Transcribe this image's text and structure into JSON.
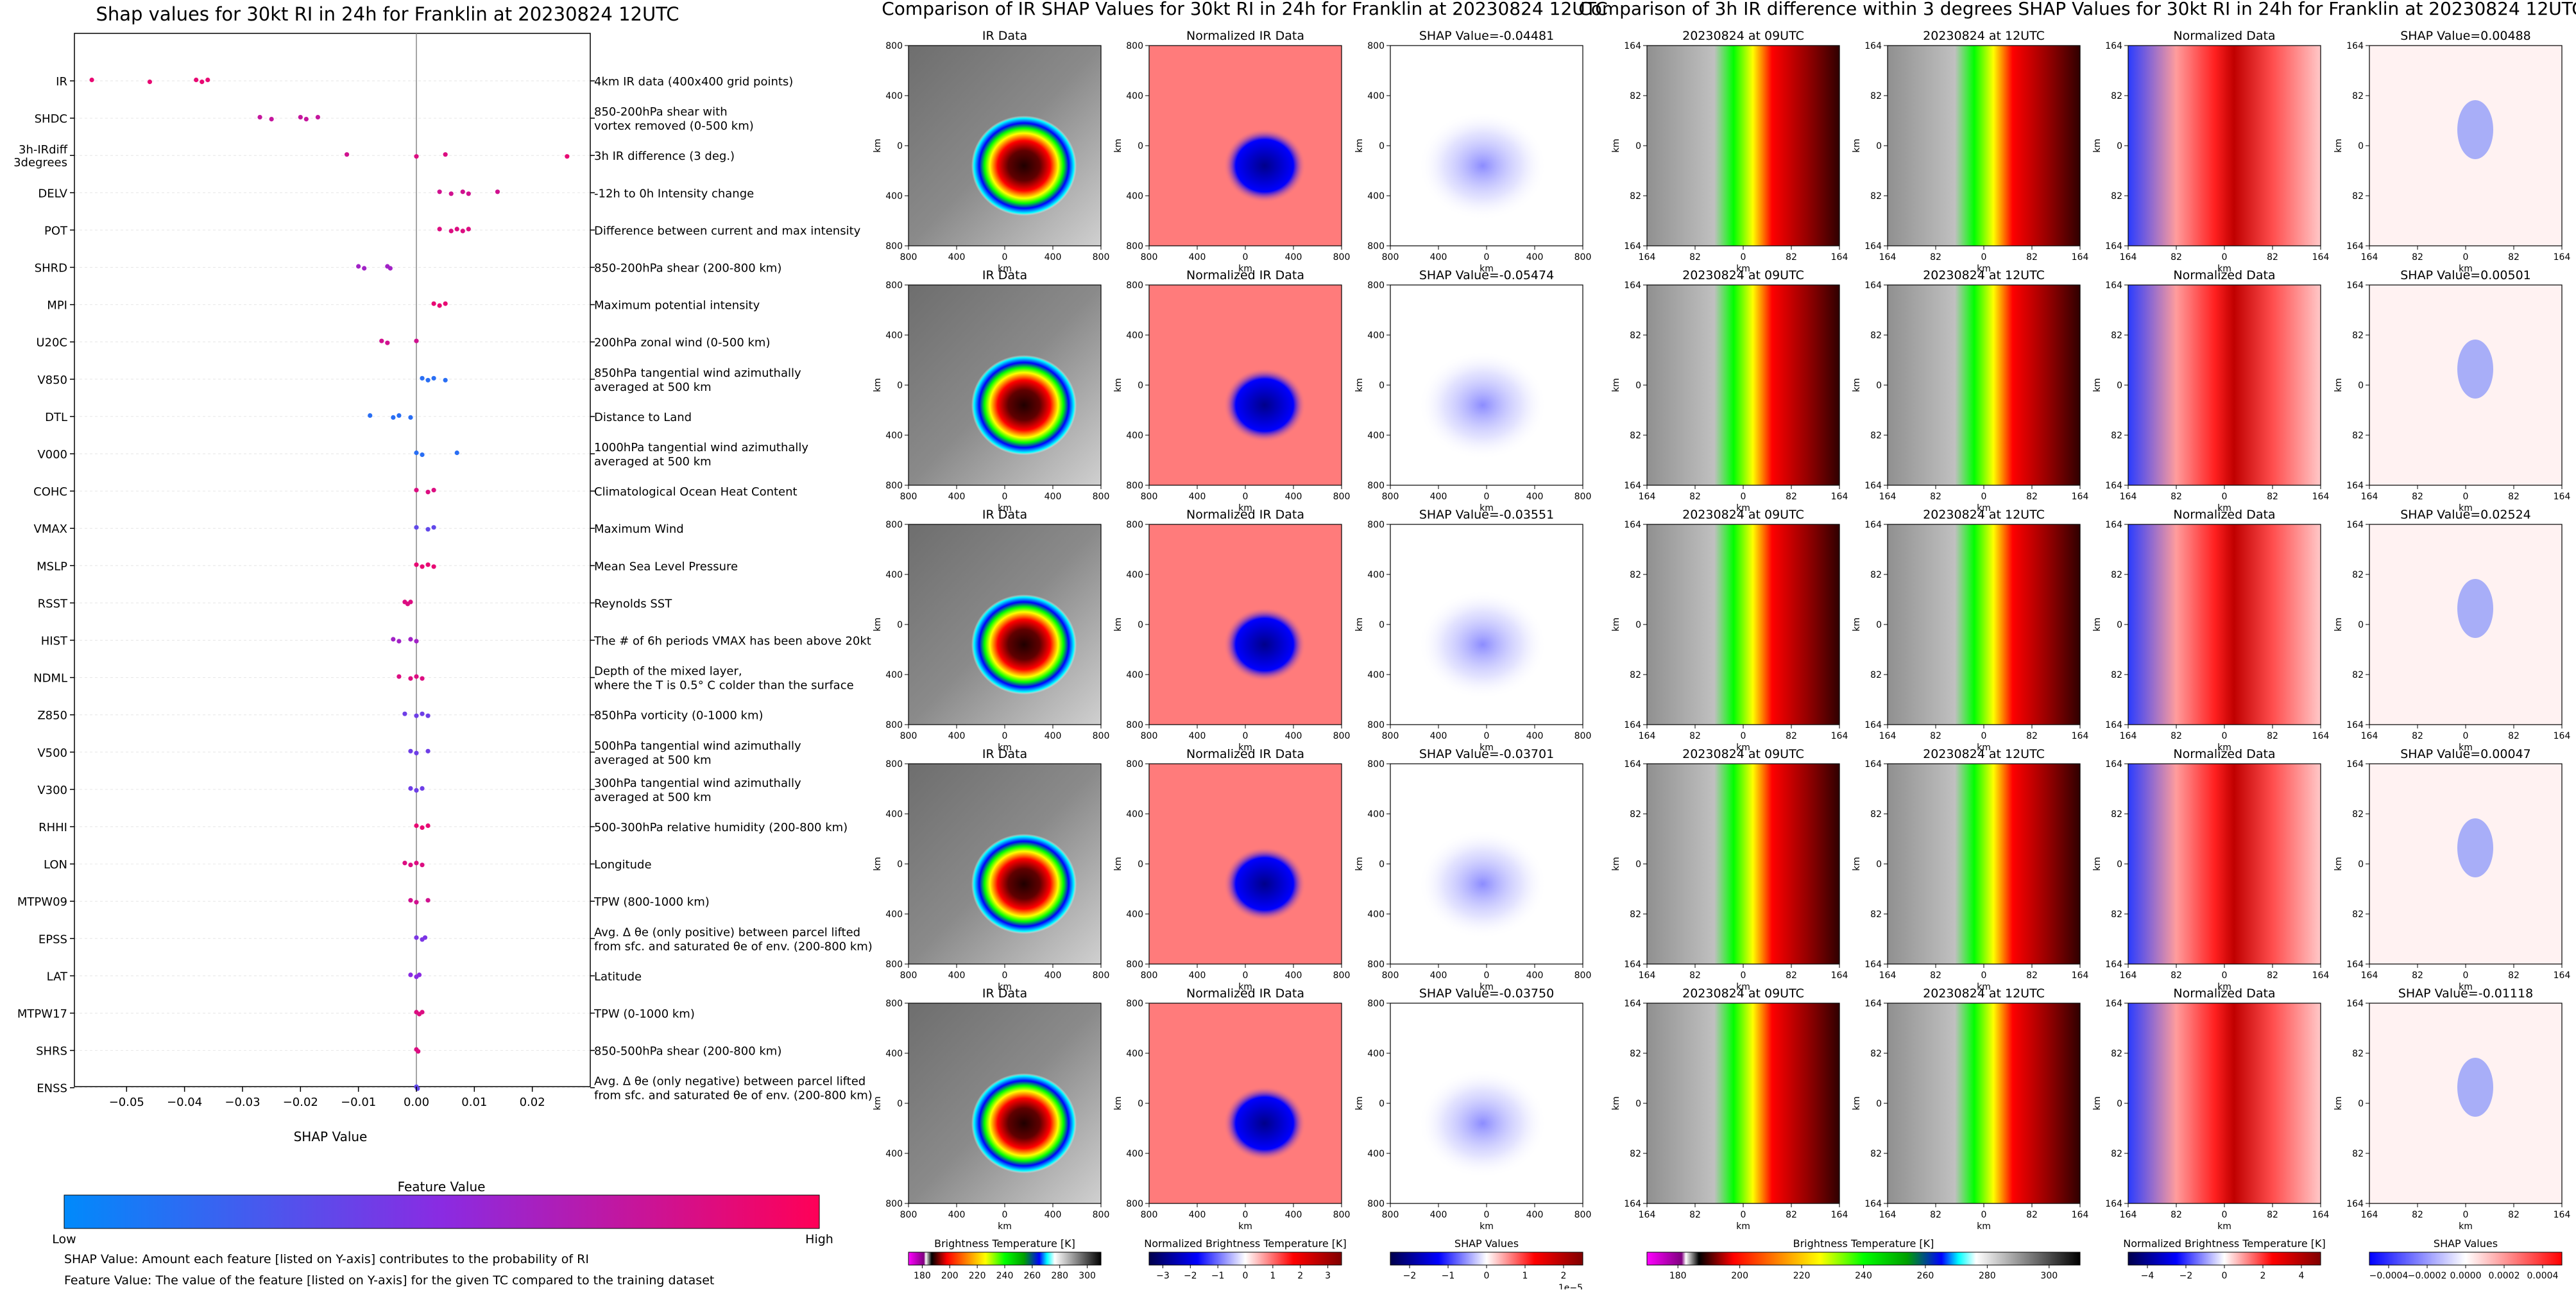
{
  "left_panel": {
    "title": "Shap values for 30kt RI in 24h for Franklin at 20230824 12UTC",
    "xlabel": "SHAP Value",
    "colorbar_title": "Feature Value",
    "colorbar_low": "Low",
    "colorbar_high": "High",
    "note_shap": "SHAP Value: Amount each feature [listed on Y-axis] contributes to the probability of RI",
    "note_feature": "Feature Value: The value of the feature [listed on Y-axis] for the given TC compared to the training dataset"
  },
  "chart_data": [
    {
      "type": "scatter",
      "title": "Shap values for 30kt RI in 24h for Franklin at 20230824 12UTC",
      "xlabel": "SHAP Value",
      "xlim": [
        -0.059,
        0.03
      ],
      "xticks": [
        -0.05,
        -0.04,
        -0.03,
        -0.02,
        -0.01,
        0.0,
        0.01,
        0.02
      ],
      "xtick_labels": [
        "−0.05",
        "−0.04",
        "−0.03",
        "−0.02",
        "−0.01",
        "0.00",
        "0.01",
        "0.02"
      ],
      "legend": "colorbar bottom (Feature Value: Low to High)",
      "features": [
        {
          "name": "IR",
          "desc": "4km IR data (400x400 grid points)",
          "points": [
            [
              -0.056,
              0.9
            ],
            [
              -0.046,
              0.9
            ],
            [
              -0.038,
              0.9
            ],
            [
              -0.037,
              0.9
            ],
            [
              -0.036,
              0.9
            ]
          ]
        },
        {
          "name": "SHDC",
          "desc": "850-200hPa shear with\nvortex removed (0-500 km)",
          "points": [
            [
              -0.027,
              0.75
            ],
            [
              -0.025,
              0.75
            ],
            [
              -0.02,
              0.75
            ],
            [
              -0.019,
              0.75
            ],
            [
              -0.017,
              0.75
            ]
          ]
        },
        {
          "name": "3h-IRdiff\n3degrees",
          "desc": "3h IR difference (3 deg.)",
          "points": [
            [
              -0.012,
              0.8
            ],
            [
              0.0,
              0.85
            ],
            [
              0.005,
              0.85
            ],
            [
              0.026,
              0.9
            ]
          ]
        },
        {
          "name": "DELV",
          "desc": "-12h to 0h Intensity change",
          "points": [
            [
              0.004,
              0.8
            ],
            [
              0.006,
              0.8
            ],
            [
              0.008,
              0.8
            ],
            [
              0.009,
              0.8
            ],
            [
              0.014,
              0.8
            ]
          ]
        },
        {
          "name": "POT",
          "desc": "Difference between current and max intensity",
          "points": [
            [
              0.004,
              0.85
            ],
            [
              0.006,
              0.85
            ],
            [
              0.007,
              0.85
            ],
            [
              0.008,
              0.85
            ],
            [
              0.009,
              0.85
            ]
          ]
        },
        {
          "name": "SHRD",
          "desc": "850-200hPa shear (200-800 km)",
          "points": [
            [
              -0.01,
              0.6
            ],
            [
              -0.009,
              0.6
            ],
            [
              -0.005,
              0.6
            ],
            [
              -0.0045,
              0.6
            ]
          ]
        },
        {
          "name": "MPI",
          "desc": "Maximum potential intensity",
          "points": [
            [
              0.003,
              0.9
            ],
            [
              0.004,
              0.9
            ],
            [
              0.005,
              0.9
            ]
          ]
        },
        {
          "name": "U20C",
          "desc": "200hPa zonal wind (0-500 km)",
          "points": [
            [
              -0.006,
              0.8
            ],
            [
              -0.005,
              0.8
            ],
            [
              0.0,
              0.8
            ]
          ]
        },
        {
          "name": "V850",
          "desc": "850hPa tangential wind azimuthally\naveraged at 500 km",
          "points": [
            [
              0.001,
              0.15
            ],
            [
              0.002,
              0.15
            ],
            [
              0.003,
              0.15
            ],
            [
              0.005,
              0.15
            ]
          ]
        },
        {
          "name": "DTL",
          "desc": "Distance to Land",
          "points": [
            [
              -0.008,
              0.15
            ],
            [
              -0.004,
              0.15
            ],
            [
              -0.003,
              0.15
            ],
            [
              -0.001,
              0.15
            ]
          ]
        },
        {
          "name": "V000",
          "desc": "1000hPa tangential wind azimuthally\naveraged at 500 km",
          "points": [
            [
              0.0,
              0.15
            ],
            [
              0.001,
              0.15
            ],
            [
              0.007,
              0.15
            ]
          ]
        },
        {
          "name": "COHC",
          "desc": "Climatological Ocean Heat Content",
          "points": [
            [
              0.0,
              0.85
            ],
            [
              0.002,
              0.85
            ],
            [
              0.003,
              0.85
            ]
          ]
        },
        {
          "name": "VMAX",
          "desc": "Maximum Wind",
          "points": [
            [
              0.0,
              0.35
            ],
            [
              0.002,
              0.35
            ],
            [
              0.003,
              0.35
            ]
          ]
        },
        {
          "name": "MSLP",
          "desc": "Mean Sea Level Pressure",
          "points": [
            [
              0.0,
              0.9
            ],
            [
              0.001,
              0.9
            ],
            [
              0.002,
              0.9
            ],
            [
              0.003,
              0.9
            ]
          ]
        },
        {
          "name": "RSST",
          "desc": "Reynolds SST",
          "points": [
            [
              -0.002,
              0.85
            ],
            [
              -0.0015,
              0.85
            ],
            [
              -0.001,
              0.85
            ]
          ]
        },
        {
          "name": "HIST",
          "desc": "The # of 6h periods VMAX has been above 20kt",
          "points": [
            [
              -0.004,
              0.6
            ],
            [
              -0.003,
              0.6
            ],
            [
              -0.001,
              0.6
            ],
            [
              0.0,
              0.6
            ]
          ]
        },
        {
          "name": "NDML",
          "desc": "Depth of the mixed layer,\nwhere the T is 0.5° C colder than the surface",
          "points": [
            [
              -0.003,
              0.85
            ],
            [
              -0.001,
              0.85
            ],
            [
              0.0,
              0.85
            ],
            [
              0.001,
              0.85
            ]
          ]
        },
        {
          "name": "Z850",
          "desc": "850hPa vorticity (0-1000 km)",
          "points": [
            [
              -0.002,
              0.4
            ],
            [
              0.0,
              0.4
            ],
            [
              0.001,
              0.4
            ],
            [
              0.002,
              0.4
            ]
          ]
        },
        {
          "name": "V500",
          "desc": "500hPa tangential wind azimuthally\naveraged at 500 km",
          "points": [
            [
              -0.001,
              0.4
            ],
            [
              0.0,
              0.4
            ],
            [
              0.002,
              0.4
            ]
          ]
        },
        {
          "name": "V300",
          "desc": "300hPa tangential wind azimuthally\naveraged at 500 km",
          "points": [
            [
              -0.001,
              0.4
            ],
            [
              0.0,
              0.4
            ],
            [
              0.001,
              0.4
            ]
          ]
        },
        {
          "name": "RHHI",
          "desc": "500-300hPa relative humidity (200-800 km)",
          "points": [
            [
              0.0,
              0.9
            ],
            [
              0.001,
              0.9
            ],
            [
              0.002,
              0.9
            ]
          ]
        },
        {
          "name": "LON",
          "desc": "Longitude",
          "points": [
            [
              -0.002,
              0.85
            ],
            [
              -0.001,
              0.85
            ],
            [
              0.0,
              0.85
            ],
            [
              0.001,
              0.85
            ]
          ]
        },
        {
          "name": "MTPW09",
          "desc": "TPW (800-1000 km)",
          "points": [
            [
              -0.001,
              0.8
            ],
            [
              0.0,
              0.8
            ],
            [
              0.002,
              0.8
            ]
          ]
        },
        {
          "name": "EPSS",
          "desc": "Avg. Δ θe (only positive) between parcel lifted\nfrom sfc. and saturated θe of env. (200-800 km)",
          "points": [
            [
              0.0,
              0.45
            ],
            [
              0.001,
              0.45
            ],
            [
              0.0015,
              0.45
            ]
          ]
        },
        {
          "name": "LAT",
          "desc": "Latitude",
          "points": [
            [
              -0.001,
              0.5
            ],
            [
              0.0,
              0.5
            ],
            [
              0.0005,
              0.5
            ]
          ]
        },
        {
          "name": "MTPW17",
          "desc": "TPW (0-1000 km)",
          "points": [
            [
              0.0,
              0.85
            ],
            [
              0.0005,
              0.85
            ],
            [
              0.001,
              0.85
            ]
          ]
        },
        {
          "name": "SHRS",
          "desc": "850-500hPa shear (200-800 km)",
          "points": [
            [
              0.0,
              0.85
            ],
            [
              0.0003,
              0.85
            ]
          ]
        },
        {
          "name": "ENSS",
          "desc": "Avg. Δ θe (only negative) between parcel lifted\nfrom sfc. and saturated θe of env. (200-800 km)",
          "points": [
            [
              0.0,
              0.35
            ],
            [
              0.0002,
              0.35
            ]
          ]
        }
      ]
    },
    {
      "type": "heatmap",
      "title": "Comparison of IR SHAP Values for 30kt RI in 24h for Franklin at 20230824 12UTC",
      "columns": [
        "IR Data",
        "Normalized IR Data",
        "SHAP Value"
      ],
      "shap_values": [
        "-0.04481",
        "-0.05474",
        "-0.03551",
        "-0.03701",
        "-0.03750"
      ],
      "axis_label": "km",
      "x_ticks": [
        "800",
        "400",
        "0",
        "400",
        "800"
      ],
      "y_ticks": [
        "800",
        "400",
        "0",
        "400",
        "800"
      ],
      "colorbars": [
        {
          "label": "Brightness Temperature [K]",
          "ticks": [
            "180",
            "200",
            "220",
            "240",
            "260",
            "280",
            "300"
          ]
        },
        {
          "label": "Normalized Brightness Temperature [K]",
          "ticks": [
            "−3",
            "−2",
            "−1",
            "0",
            "1",
            "2",
            "3"
          ]
        },
        {
          "label": "SHAP Values",
          "ticks": [
            "−2",
            "−1",
            "0",
            "1",
            "2"
          ],
          "offset": "1e−5"
        }
      ]
    },
    {
      "type": "heatmap",
      "title": "Comparison of 3h IR difference within 3 degrees SHAP Values for 30kt RI in 24h for Franklin at 20230824 12UTC",
      "columns": [
        "20230824 at 09UTC",
        "20230824 at 12UTC",
        "Normalized Data",
        "SHAP Value"
      ],
      "shap_values": [
        "0.00488",
        "0.00501",
        "0.02524",
        "0.00047",
        "-0.01118"
      ],
      "axis_label": "km",
      "x_ticks": [
        "164",
        "82",
        "0",
        "82",
        "164"
      ],
      "y_ticks": [
        "164",
        "82",
        "0",
        "82",
        "164"
      ],
      "colorbars": [
        {
          "label": "Brightness Temperature [K]",
          "ticks": [
            "180",
            "200",
            "220",
            "240",
            "260",
            "280",
            "300"
          ]
        },
        {
          "label": "Normalized Brightness Temperature [K]",
          "ticks": [
            "−4",
            "−2",
            "0",
            "2",
            "4"
          ]
        },
        {
          "label": "SHAP Values",
          "ticks": [
            "−0.0004",
            "−0.0002",
            "0.0000",
            "0.0002",
            "0.0004"
          ]
        }
      ]
    }
  ],
  "colors": {
    "low": "#008afb",
    "mid": "#8a2be2",
    "high": "#ff0057"
  }
}
